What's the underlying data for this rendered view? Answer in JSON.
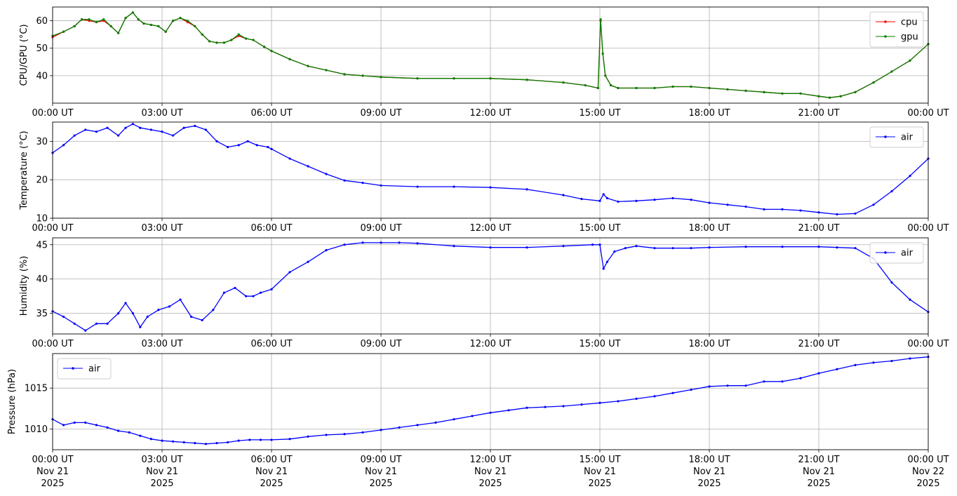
{
  "figure": {
    "x_tick_labels": [
      "00:00 UT",
      "03:00 UT",
      "06:00 UT",
      "09:00 UT",
      "12:00 UT",
      "15:00 UT",
      "18:00 UT",
      "21:00 UT",
      "00:00 UT"
    ],
    "x_tick_dates": [
      "Nov 21\n2025",
      "Nov 21\n2025",
      "Nov 21\n2025",
      "Nov 21\n2025",
      "Nov 21\n2025",
      "Nov 21\n2025",
      "Nov 21\n2025",
      "Nov 21\n2025",
      "Nov 22\n2025"
    ]
  },
  "chart_data": [
    {
      "type": "line",
      "ylabel": "CPU/GPU (°C)",
      "xlim": [
        "2025-11-21 00:00",
        "2025-11-22 00:00"
      ],
      "ylim": [
        30,
        65
      ],
      "yticks": [
        40,
        50,
        60
      ],
      "grid": true,
      "legend_placement": "top-right",
      "x_hours": [
        0,
        0.3,
        0.6,
        0.8,
        1.0,
        1.2,
        1.4,
        1.6,
        1.8,
        2.0,
        2.2,
        2.35,
        2.5,
        2.7,
        2.9,
        3.1,
        3.3,
        3.5,
        3.7,
        3.9,
        4.1,
        4.3,
        4.5,
        4.7,
        4.9,
        5.1,
        5.3,
        5.5,
        5.8,
        6.0,
        6.5,
        7.0,
        7.5,
        8.0,
        8.5,
        9.0,
        10,
        11,
        12,
        13,
        14,
        14.6,
        14.95,
        15.02,
        15.08,
        15.15,
        15.3,
        15.5,
        16,
        16.5,
        17,
        17.5,
        18,
        18.5,
        19,
        19.5,
        20,
        20.5,
        21,
        21.3,
        21.6,
        22.0,
        22.5,
        23.0,
        23.5,
        24.0
      ],
      "series": [
        {
          "name": "cpu",
          "color": "#ff0000",
          "values": [
            54,
            56,
            58,
            60.5,
            60,
            59.5,
            60,
            58,
            55.5,
            61,
            63,
            60.5,
            59,
            58.5,
            58,
            56,
            60,
            61,
            59.5,
            58,
            55,
            52.5,
            52,
            52,
            53,
            54.5,
            53.5,
            53,
            50.5,
            49,
            46,
            43.5,
            42,
            40.5,
            40,
            39.5,
            39,
            39,
            39,
            38.5,
            37.5,
            36.5,
            35.5,
            60,
            48,
            40,
            36.5,
            35.5,
            35.5,
            35.5,
            36,
            36,
            35.5,
            35,
            34.5,
            34,
            33.5,
            33.5,
            32.5,
            32,
            32.5,
            34,
            37.5,
            41.5,
            45.5,
            51.5
          ]
        },
        {
          "name": "gpu",
          "color": "#008000",
          "values": [
            54.5,
            56,
            58,
            60.5,
            60.5,
            59.5,
            60.5,
            58,
            55.5,
            61,
            63,
            60.5,
            59,
            58.5,
            58,
            56,
            60,
            61,
            60,
            58,
            55,
            52.5,
            52,
            52,
            53,
            55,
            53.5,
            53,
            50.5,
            49,
            46,
            43.5,
            42,
            40.5,
            40,
            39.5,
            39,
            39,
            39,
            38.5,
            37.5,
            36.5,
            35.5,
            60.5,
            48,
            40,
            36.5,
            35.5,
            35.5,
            35.5,
            36,
            36,
            35.5,
            35,
            34.5,
            34,
            33.5,
            33.5,
            32.5,
            32,
            32.5,
            34,
            37.5,
            41.5,
            45.5,
            51.5
          ]
        }
      ]
    },
    {
      "type": "line",
      "ylabel": "Temperature (°C)",
      "xlim": [
        "2025-11-21 00:00",
        "2025-11-22 00:00"
      ],
      "ylim": [
        10,
        35
      ],
      "yticks": [
        10,
        20,
        30
      ],
      "grid": true,
      "legend_placement": "top-right",
      "x_hours": [
        0,
        0.3,
        0.6,
        0.9,
        1.2,
        1.5,
        1.8,
        2.0,
        2.2,
        2.4,
        2.7,
        3.0,
        3.3,
        3.6,
        3.9,
        4.2,
        4.5,
        4.8,
        5.1,
        5.35,
        5.6,
        5.9,
        6.0,
        6.5,
        7.0,
        7.5,
        8.0,
        8.5,
        9.0,
        10,
        11,
        12,
        13,
        14,
        14.5,
        15.0,
        15.1,
        15.2,
        15.5,
        16.0,
        16.5,
        17.0,
        17.5,
        18.0,
        18.5,
        19.0,
        19.5,
        20.0,
        20.5,
        21.0,
        21.5,
        22.0,
        22.5,
        23.0,
        23.5,
        24.0
      ],
      "series": [
        {
          "name": "air",
          "color": "#0000ff",
          "values": [
            27,
            29,
            31.5,
            33,
            32.5,
            33.5,
            31.5,
            33.5,
            34.5,
            33.5,
            33,
            32.5,
            31.5,
            33.5,
            34,
            33,
            30,
            28.5,
            29,
            30,
            29,
            28.5,
            28,
            25.5,
            23.5,
            21.5,
            19.8,
            19.2,
            18.5,
            18.2,
            18.2,
            18,
            17.5,
            16,
            15,
            14.5,
            16.2,
            15.2,
            14.3,
            14.5,
            14.8,
            15.2,
            14.8,
            14,
            13.5,
            13,
            12.3,
            12.3,
            12,
            11.5,
            11,
            11.2,
            13.5,
            17,
            21,
            25.5
          ]
        }
      ]
    },
    {
      "type": "line",
      "ylabel": "Humidity (%)",
      "xlim": [
        "2025-11-21 00:00",
        "2025-11-22 00:00"
      ],
      "ylim": [
        32,
        46
      ],
      "yticks": [
        35,
        40,
        45
      ],
      "grid": true,
      "legend_placement": "top-right",
      "x_hours": [
        0,
        0.3,
        0.6,
        0.9,
        1.2,
        1.5,
        1.8,
        2.0,
        2.2,
        2.4,
        2.6,
        2.9,
        3.2,
        3.5,
        3.8,
        4.1,
        4.4,
        4.7,
        5.0,
        5.3,
        5.5,
        5.7,
        6.0,
        6.5,
        7.0,
        7.5,
        8.0,
        8.5,
        9.0,
        9.5,
        10,
        11,
        12,
        13,
        14,
        14.8,
        15.0,
        15.1,
        15.2,
        15.4,
        15.7,
        16.0,
        16.5,
        17.0,
        17.5,
        18,
        19,
        20,
        21,
        21.5,
        22.0,
        22.5,
        23.0,
        23.5,
        24.0
      ],
      "series": [
        {
          "name": "air",
          "color": "#0000ff",
          "values": [
            35.3,
            34.5,
            33.5,
            32.5,
            33.5,
            33.5,
            35,
            36.5,
            35,
            33,
            34.5,
            35.5,
            36,
            37,
            34.5,
            34,
            35.5,
            38,
            38.7,
            37.5,
            37.5,
            38,
            38.5,
            41,
            42.5,
            44.2,
            45,
            45.3,
            45.3,
            45.3,
            45.2,
            44.8,
            44.6,
            44.6,
            44.8,
            45,
            45,
            41.5,
            42.5,
            44,
            44.5,
            44.8,
            44.5,
            44.5,
            44.5,
            44.6,
            44.7,
            44.7,
            44.7,
            44.6,
            44.5,
            43,
            39.5,
            37,
            35.2
          ]
        }
      ]
    },
    {
      "type": "line",
      "ylabel": "Pressure (hPa)",
      "xlim": [
        "2025-11-21 00:00",
        "2025-11-22 00:00"
      ],
      "ylim": [
        1007.5,
        1019.2
      ],
      "yticks": [
        1010,
        1015
      ],
      "grid": true,
      "legend_placement": "top-left",
      "x_hours": [
        0,
        0.3,
        0.6,
        0.9,
        1.2,
        1.5,
        1.8,
        2.1,
        2.4,
        2.7,
        3.0,
        3.3,
        3.6,
        3.9,
        4.2,
        4.5,
        4.8,
        5.1,
        5.4,
        5.7,
        6.0,
        6.5,
        7.0,
        7.5,
        8.0,
        8.5,
        9.0,
        9.5,
        10,
        10.5,
        11,
        11.5,
        12,
        12.5,
        13,
        13.5,
        14,
        14.5,
        15,
        15.5,
        16,
        16.5,
        17,
        17.5,
        18,
        18.5,
        19,
        19.5,
        20,
        20.5,
        21,
        21.5,
        22,
        22.5,
        23,
        23.5,
        24
      ],
      "series": [
        {
          "name": "air",
          "color": "#0000ff",
          "values": [
            1011.2,
            1010.5,
            1010.8,
            1010.8,
            1010.5,
            1010.2,
            1009.8,
            1009.6,
            1009.2,
            1008.8,
            1008.6,
            1008.5,
            1008.4,
            1008.3,
            1008.2,
            1008.3,
            1008.4,
            1008.6,
            1008.7,
            1008.7,
            1008.7,
            1008.8,
            1009.1,
            1009.3,
            1009.4,
            1009.6,
            1009.9,
            1010.2,
            1010.5,
            1010.8,
            1011.2,
            1011.6,
            1012,
            1012.3,
            1012.6,
            1012.7,
            1012.8,
            1013,
            1013.2,
            1013.4,
            1013.7,
            1014,
            1014.4,
            1014.8,
            1015.2,
            1015.3,
            1015.3,
            1015.8,
            1015.8,
            1016.2,
            1016.8,
            1017.3,
            1017.8,
            1018.1,
            1018.3,
            1018.6,
            1018.8
          ]
        }
      ]
    }
  ]
}
